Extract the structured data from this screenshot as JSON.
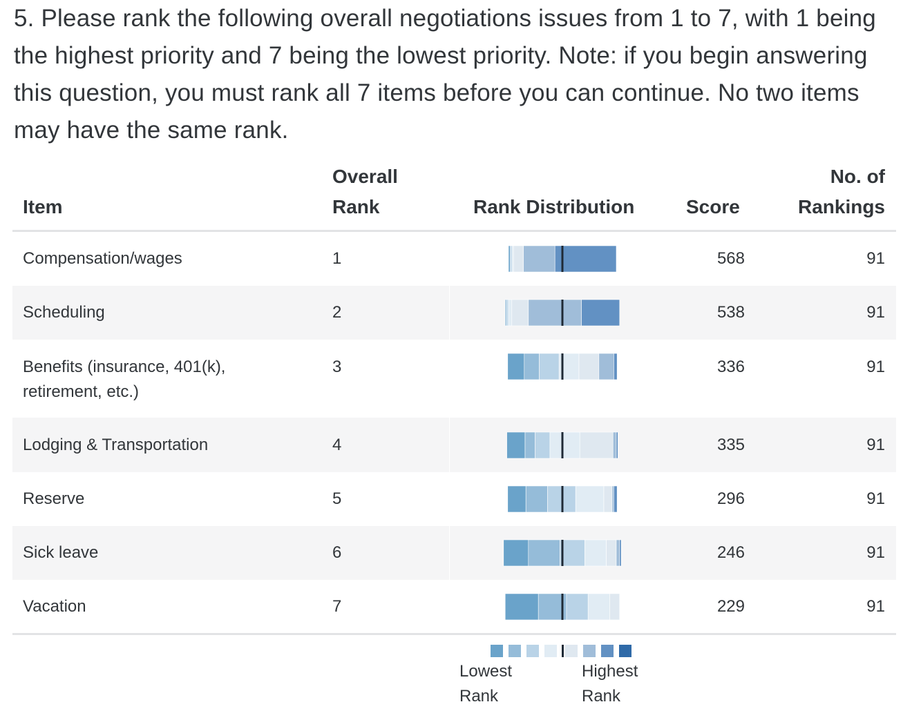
{
  "question": "5. Please rank the following overall negotiations issues from 1 to 7, with 1 being the highest priority and 7 being the lowest priority. Note: if you begin answering this question, you must rank all 7 items before you can continue.  No two items may have the same rank.",
  "table": {
    "headers": {
      "item": "Item",
      "overall_rank_line1": "Overall",
      "overall_rank_line2": "Rank",
      "distribution": "Rank Distribution",
      "score": "Score",
      "rankings_line1": "No. of",
      "rankings_line2": "Rankings"
    },
    "rows": [
      {
        "item": "Compensation/wages",
        "rank": "1",
        "score": "568",
        "rankings": "91"
      },
      {
        "item": "Scheduling",
        "rank": "2",
        "score": "538",
        "rankings": "91"
      },
      {
        "item": "Benefits (insurance, 401(k), retirement, etc.)",
        "rank": "3",
        "score": "336",
        "rankings": "91"
      },
      {
        "item": "Lodging & Transportation",
        "rank": "4",
        "score": "335",
        "rankings": "91"
      },
      {
        "item": "Reserve",
        "rank": "5",
        "score": "296",
        "rankings": "91"
      },
      {
        "item": "Sick leave",
        "rank": "6",
        "score": "246",
        "rankings": "91"
      },
      {
        "item": "Vacation",
        "rank": "7",
        "score": "229",
        "rankings": "91"
      }
    ]
  },
  "legend": {
    "lowest_line1": "Lowest",
    "lowest_line2": "Rank",
    "highest_line1": "Highest",
    "highest_line2": "Rank"
  },
  "colors": {
    "lowest_rank": "#6aa3ca",
    "rank_6": "#95bcd9",
    "rank_5": "#b9d3e7",
    "rank_4": "#e1ecf4",
    "rank_3": "#dfe8f0",
    "rank_2": "#a0bdd9",
    "highest_rank": "#6291c3",
    "center_marker": "#1f2a36",
    "row_shade": "#f5f5f6",
    "rule": "#e2e3e5"
  },
  "chart_data": {
    "type": "bar",
    "subtype": "diverging-stacked",
    "title": "Rank Distribution",
    "categories": [
      "Compensation/wages",
      "Scheduling",
      "Benefits (insurance, 401(k), retirement, etc.)",
      "Lodging & Transportation",
      "Reserve",
      "Sick leave",
      "Vacation"
    ],
    "series": [
      {
        "name": "Rank 7",
        "values": [
          1,
          0,
          10,
          11,
          11,
          15,
          20
        ]
      },
      {
        "name": "Rank 6",
        "values": [
          0,
          1,
          9,
          6,
          13,
          19,
          17
        ]
      },
      {
        "name": "Rank 5",
        "values": [
          1,
          1,
          12,
          9,
          17,
          15,
          13
        ]
      },
      {
        "name": "Rank 4",
        "values": [
          1,
          2,
          12,
          18,
          17,
          13,
          13
        ]
      },
      {
        "name": "Rank 3",
        "values": [
          6,
          10,
          12,
          20,
          5,
          6,
          6
        ]
      },
      {
        "name": "Rank 2",
        "values": [
          19,
          32,
          9,
          2,
          1,
          2,
          0
        ]
      },
      {
        "name": "Rank 1",
        "values": [
          37,
          23,
          2,
          1,
          2,
          1,
          0
        ]
      }
    ],
    "x_center": "median of 91 rankings",
    "legend_placement": "bottom"
  }
}
